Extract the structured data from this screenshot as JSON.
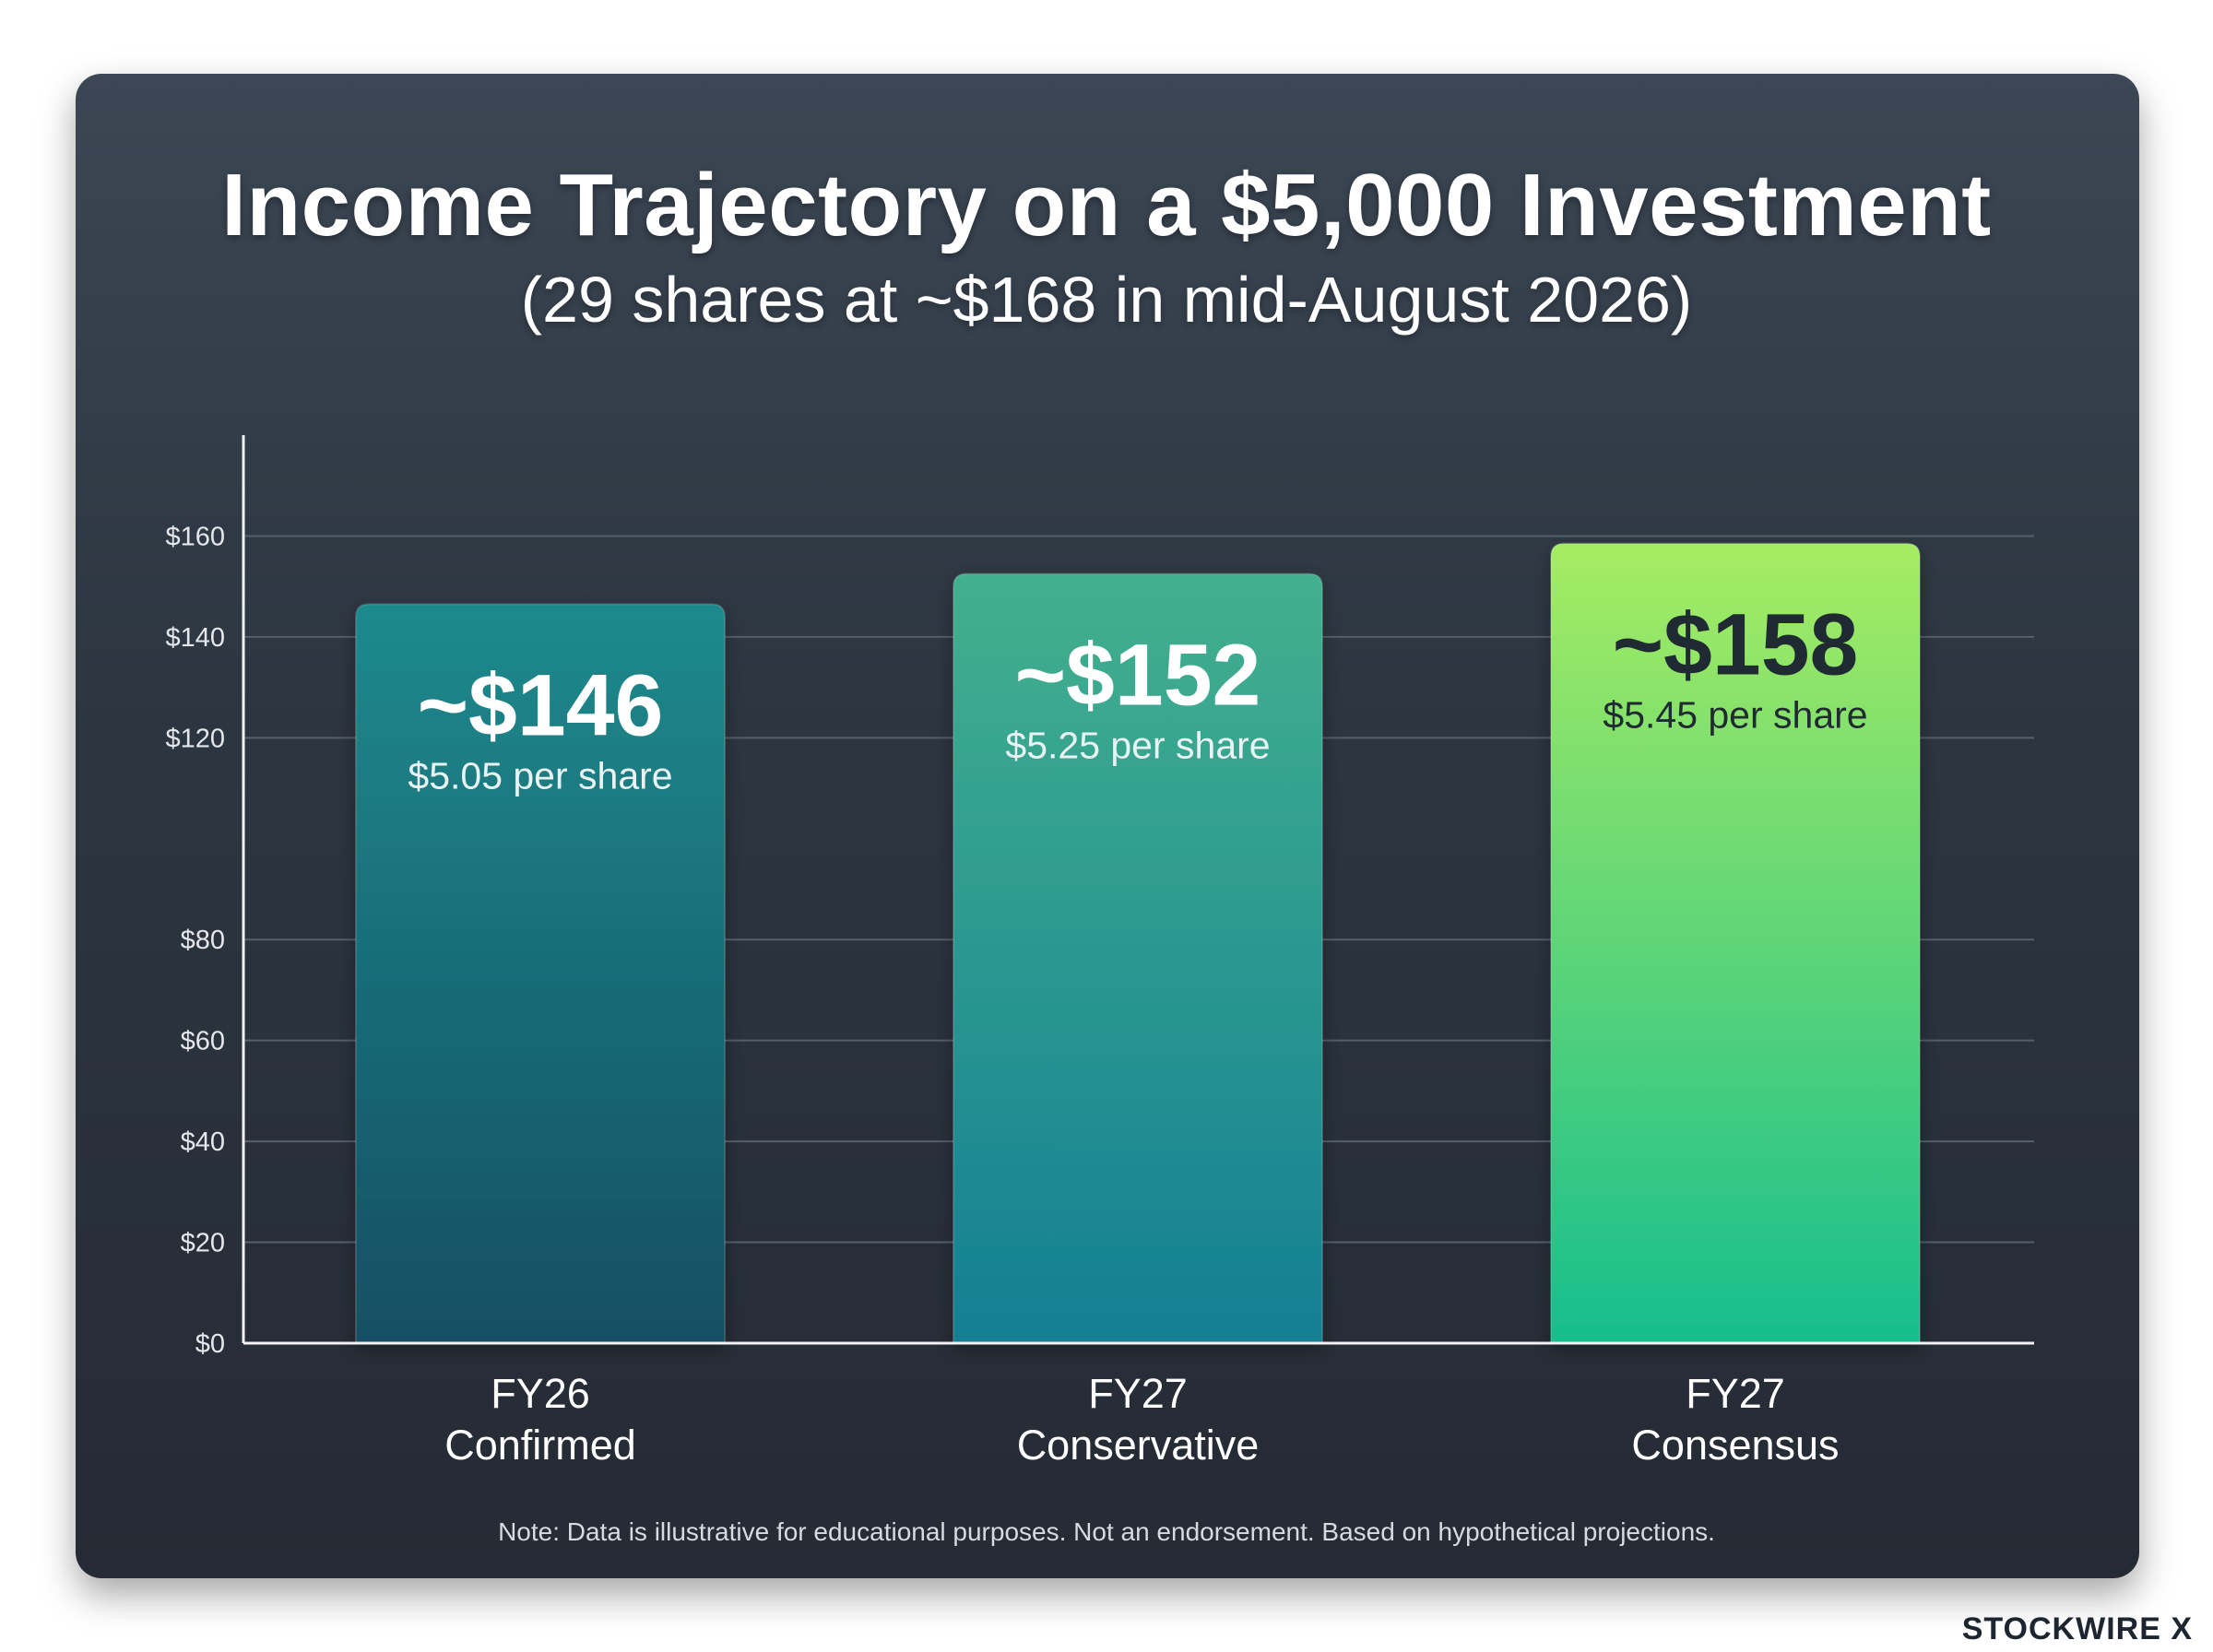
{
  "brand": "STOCKWIRE X",
  "note": "Note: Data is illustrative for educational purposes. Not an endorsement. Based on hypothetical projections.",
  "chart_data": {
    "type": "bar",
    "title": "Income Trajectory on a $5,000 Investment",
    "subtitle": "(29 shares at ~$168 in mid-August 2026)",
    "categories": [
      [
        "FY26",
        "Confirmed"
      ],
      [
        "FY27",
        "Conservative"
      ],
      [
        "FY27",
        "Consensus"
      ]
    ],
    "values": [
      146,
      152,
      158
    ],
    "value_labels": [
      "~$146",
      "~$152",
      "~$158"
    ],
    "per_share_labels": [
      "$5.05 per share",
      "$5.25 per share",
      "$5.45 per share"
    ],
    "yticks": [
      0,
      20,
      40,
      60,
      80,
      120,
      140,
      160
    ],
    "ytick_labels": [
      "$0",
      "$20",
      "$40",
      "$60",
      "$80",
      "$120",
      "$140",
      "$160"
    ],
    "ylim": [
      0,
      180
    ],
    "grid": true,
    "colors": {
      "bar1_top": "#1e8a8c",
      "bar1_bottom": "#134f63",
      "bar2_top": "#43b08e",
      "bar2_bottom": "#137f93",
      "bar3_top": "#a6ec62",
      "bar3_bottom": "#16be8e",
      "grid": "#56606b",
      "axis": "#f0f2f4",
      "label_light": "#ffffff",
      "label_dark": "#1f2a33",
      "label_light_sub": "#e9f3f3"
    }
  }
}
